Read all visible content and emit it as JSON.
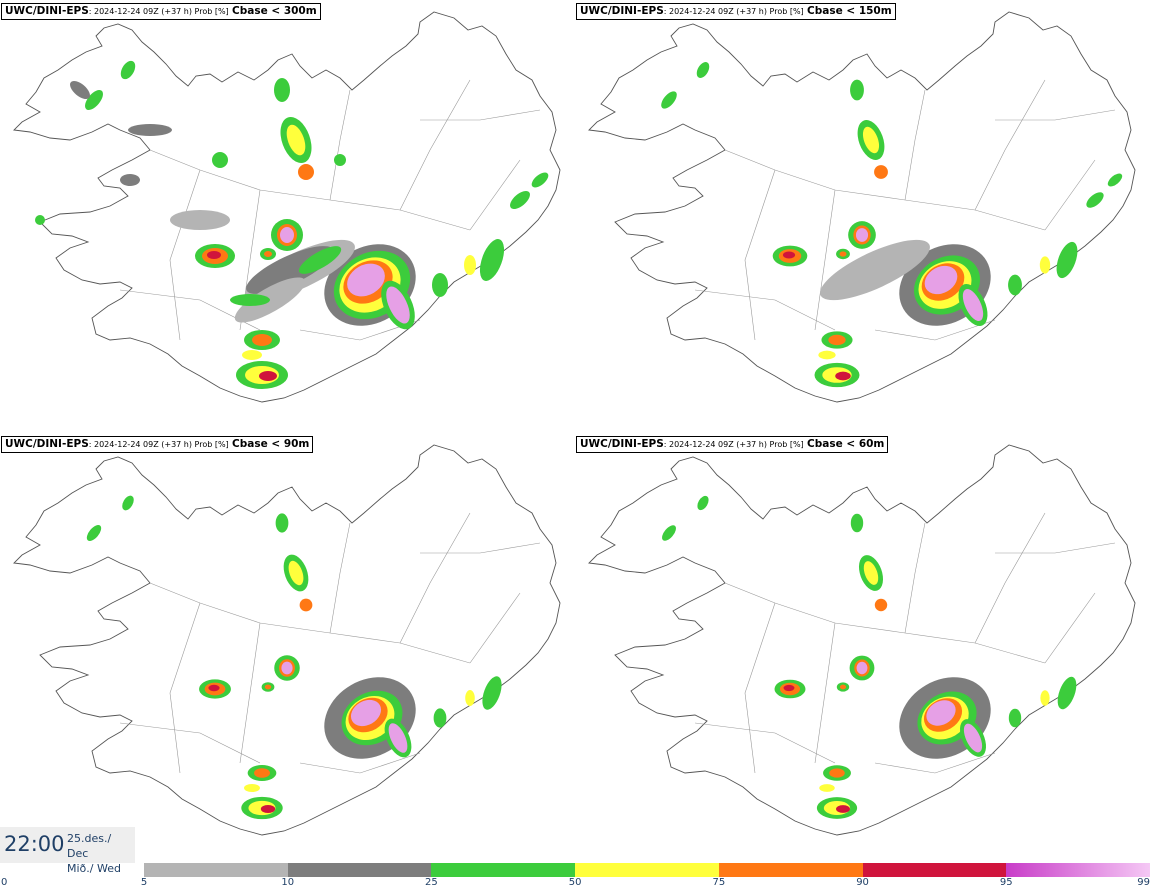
{
  "panels": [
    {
      "model": "UWC/DINI-EPS",
      "meta": ": 2024-12-24 09Z (+37 h) Prob [%]",
      "threshold": "Cbase < 300m",
      "coverage": 1.0
    },
    {
      "model": "UWC/DINI-EPS",
      "meta": ": 2024-12-24 09Z (+37 h) Prob [%]",
      "threshold": "Cbase < 150m",
      "coverage": 0.7
    },
    {
      "model": "UWC/DINI-EPS",
      "meta": ": 2024-12-24 09Z (+37 h) Prob [%]",
      "threshold": "Cbase < 90m",
      "coverage": 0.55
    },
    {
      "model": "UWC/DINI-EPS",
      "meta": ": 2024-12-24 09Z (+37 h) Prob [%]",
      "threshold": "Cbase < 60m",
      "coverage": 0.5
    }
  ],
  "time": {
    "clock": "22:00",
    "date_line1": "25.des./ Dec",
    "date_line2": "Mið./ Wed"
  },
  "legend": {
    "ticks": [
      "0",
      "5",
      "10",
      "25",
      "50",
      "75",
      "90",
      "95",
      "99"
    ],
    "bins": [
      {
        "from": 5,
        "to": 10,
        "color": "#b4b4b4"
      },
      {
        "from": 10,
        "to": 25,
        "color": "#7d7d7d"
      },
      {
        "from": 25,
        "to": 50,
        "color": "#3ccc3c"
      },
      {
        "from": 50,
        "to": 75,
        "color": "#ffff3c"
      },
      {
        "from": 75,
        "to": 90,
        "color": "#ff7814"
      },
      {
        "from": 90,
        "to": 95,
        "color": "#d0143c"
      },
      {
        "from": 95,
        "to": 99,
        "color": "#c83cc8",
        "to_color": "#f5c8f5"
      }
    ]
  },
  "colors": {
    "outline": "#555555",
    "text_accent": "#1f3f66"
  }
}
